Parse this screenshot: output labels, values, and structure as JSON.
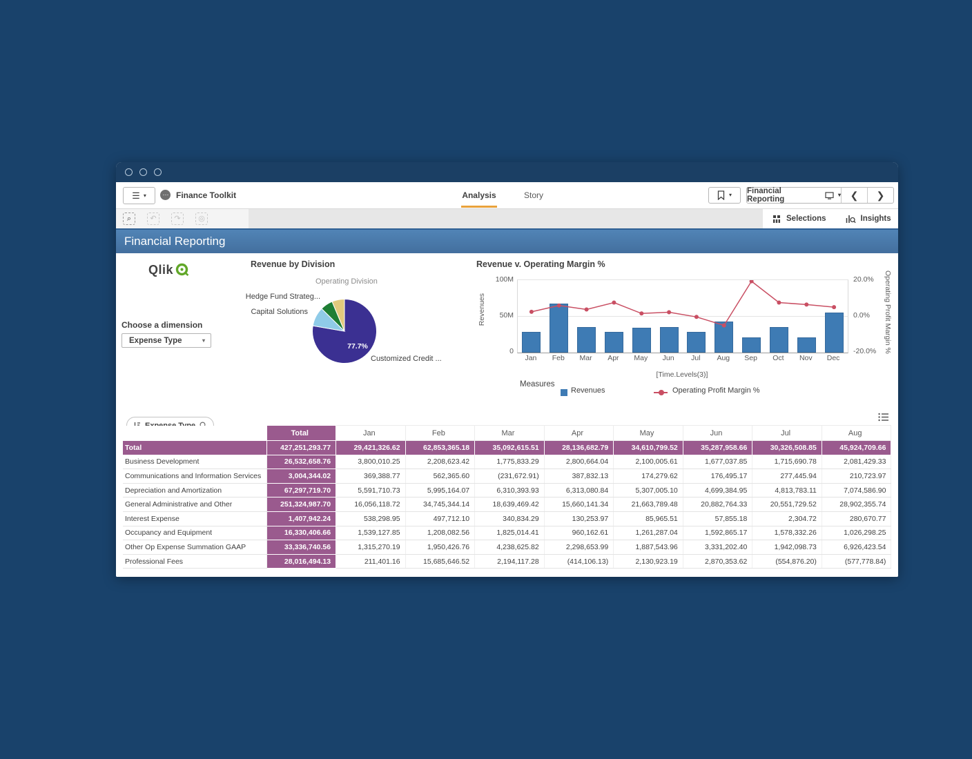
{
  "window": {
    "controls": 3
  },
  "toolbar": {
    "app_name": "Finance Toolkit",
    "tabs": [
      {
        "label": "Analysis",
        "active": true
      },
      {
        "label": "Story",
        "active": false
      }
    ],
    "sheet_selector_label": "Financial Reporting",
    "selections_label": "Selections",
    "insights_label": "Insights"
  },
  "sheet": {
    "title": "Financial Reporting"
  },
  "left_panel": {
    "logo_text": "Qlik",
    "choose_label": "Choose a dimension",
    "dimension_value": "Expense Type"
  },
  "chart_data": [
    {
      "type": "pie",
      "title": "Revenue by Division",
      "legend_title": "Operating Division",
      "slices": [
        {
          "label": "Customized Credit ...",
          "value": 77.7,
          "color": "#3b3092",
          "data_label": "77.7%"
        },
        {
          "label": "Capital Solutions",
          "value": 9.7,
          "color": "#8fcbe8"
        },
        {
          "label": "Hedge Fund Strateg...",
          "value": 6.3,
          "color": "#1e7e34"
        },
        {
          "label": "",
          "value": 6.3,
          "color": "#e2ca7d"
        }
      ]
    },
    {
      "type": "combo",
      "title": "Revenue v. Operating Margin %",
      "x_axis_label": "[Time.Levels(3)]",
      "categories": [
        "Jan",
        "Feb",
        "Mar",
        "Apr",
        "May",
        "Jun",
        "Jul",
        "Aug",
        "Sep",
        "Oct",
        "Nov",
        "Dec"
      ],
      "series": [
        {
          "name": "Revenues",
          "type": "bar",
          "color": "#3e7bb4",
          "values_millions": [
            29,
            68,
            35,
            29,
            34,
            35,
            29,
            43,
            21,
            35,
            21,
            55
          ]
        },
        {
          "name": "Operating Profit Margin %",
          "type": "line",
          "color": "#c94f63",
          "values_percent": [
            2.5,
            6,
            3.8,
            7.6,
            1.6,
            2.3,
            -0.3,
            -5,
            19.4,
            7.6,
            6.5,
            5.1
          ]
        }
      ],
      "y_left": {
        "label": "Revenues",
        "ticks": [
          "0",
          "50M",
          "100M"
        ],
        "min": 0,
        "max": 100
      },
      "y_right": {
        "label": "Operating Profit Margin %",
        "ticks": [
          "-20.0%",
          "0.0%",
          "20.0%"
        ],
        "min": -20,
        "max": 20
      },
      "legend_title": "Measures",
      "grid": true
    }
  ],
  "table": {
    "dimension_control": "Expense Type",
    "columns": [
      "Total",
      "Jan",
      "Feb",
      "Mar",
      "Apr",
      "May",
      "Jun",
      "Jul",
      "Aug"
    ],
    "rows": [
      {
        "label": "Total",
        "is_total": true,
        "total": "427,251,293.77",
        "values": [
          "29,421,326.62",
          "62,853,365.18",
          "35,092,615.51",
          "28,136,682.79",
          "34,610,799.52",
          "35,287,958.66",
          "30,326,508.85",
          "45,924,709.66"
        ]
      },
      {
        "label": "Business Development",
        "total": "26,532,658.76",
        "values": [
          "3,800,010.25",
          "2,208,623.42",
          "1,775,833.29",
          "2,800,664.04",
          "2,100,005.61",
          "1,677,037.85",
          "1,715,690.78",
          "2,081,429.33"
        ]
      },
      {
        "label": "Communications and Information Services",
        "total": "3,004,344.02",
        "values": [
          "369,388.77",
          "562,365.60",
          "(231,672.91)",
          "387,832.13",
          "174,279.62",
          "176,495.17",
          "277,445.94",
          "210,723.97"
        ]
      },
      {
        "label": "Depreciation and Amortization",
        "total": "67,297,719.70",
        "values": [
          "5,591,710.73",
          "5,995,164.07",
          "6,310,393.93",
          "6,313,080.84",
          "5,307,005.10",
          "4,699,384.95",
          "4,813,783.11",
          "7,074,586.90"
        ]
      },
      {
        "label": "General Administrative and Other",
        "total": "251,324,987.70",
        "values": [
          "16,056,118.72",
          "34,745,344.14",
          "18,639,469.42",
          "15,660,141.34",
          "21,663,789.48",
          "20,882,764.33",
          "20,551,729.52",
          "28,902,355.74"
        ]
      },
      {
        "label": "Interest Expense",
        "total": "1,407,942.24",
        "values": [
          "538,298.95",
          "497,712.10",
          "340,834.29",
          "130,253.97",
          "85,965.51",
          "57,855.18",
          "2,304.72",
          "280,670.77"
        ]
      },
      {
        "label": "Occupancy and Equipment",
        "total": "16,330,406.66",
        "values": [
          "1,539,127.85",
          "1,208,082.56",
          "1,825,014.41",
          "960,162.61",
          "1,261,287.04",
          "1,592,865.17",
          "1,578,332.26",
          "1,026,298.25"
        ]
      },
      {
        "label": "Other Op Expense Summation GAAP",
        "total": "33,336,740.56",
        "values": [
          "1,315,270.19",
          "1,950,426.76",
          "4,238,625.82",
          "2,298,653.99",
          "1,887,543.96",
          "3,331,202.40",
          "1,942,098.73",
          "6,926,423.54"
        ]
      },
      {
        "label": "Professional Fees",
        "total": "28,016,494.13",
        "values": [
          "211,401.16",
          "15,685,646.52",
          "2,194,117.28",
          "(414,106.13)",
          "2,130,923.19",
          "2,870,353.62",
          "(554,876.20)",
          "(577,778.84)"
        ]
      }
    ]
  },
  "colors": {
    "page_background": "#19426b",
    "sheet_header_blue": "#4a7bac",
    "tab_underline_orange": "#e9a23b",
    "accent_purple": "#9a5a8e",
    "bar_blue": "#3e7bb4",
    "line_red": "#c94f63",
    "pie_purple": "#3b3092",
    "pie_light_blue": "#8fcbe8",
    "pie_green": "#1e7e34",
    "pie_tan": "#e2ca7d",
    "qlik_green": "#61a729"
  }
}
